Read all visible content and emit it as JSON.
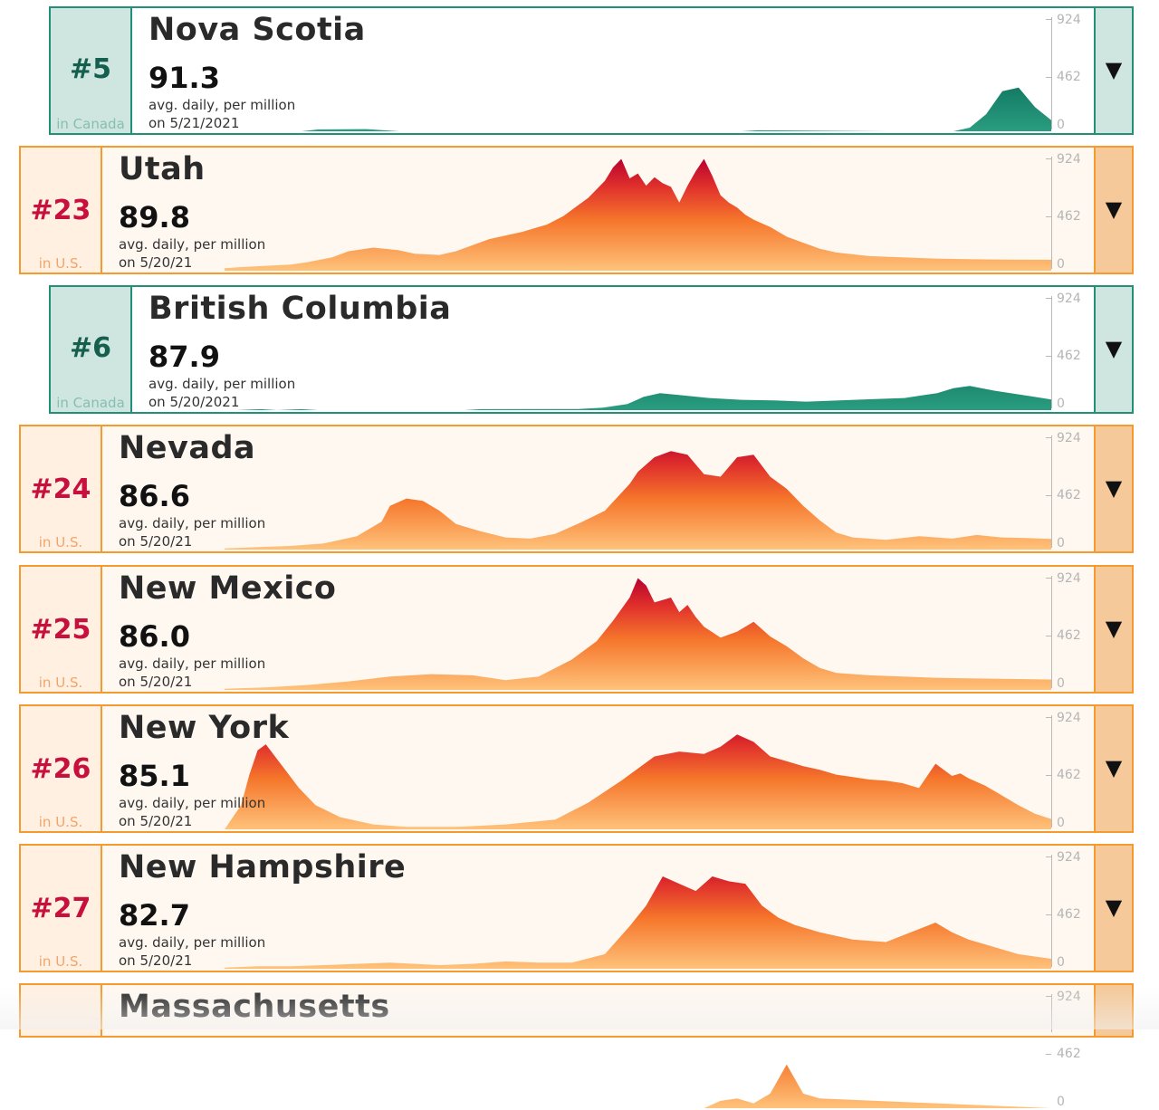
{
  "axis": {
    "max_label": "924",
    "mid_label": "462",
    "min_label": "0",
    "max": 924
  },
  "cards": [
    {
      "rank": "#5",
      "country": "in Canada",
      "name": "Nova Scotia",
      "value": "91.3",
      "unit": "avg. daily, per million",
      "date": "on 5/21/2021",
      "toggle": "▼",
      "kind": "ca"
    },
    {
      "rank": "#23",
      "country": "in U.S.",
      "name": "Utah",
      "value": "89.8",
      "unit": "avg. daily, per million",
      "date": "on 5/20/21",
      "toggle": "▼",
      "kind": "us"
    },
    {
      "rank": "#6",
      "country": "in Canada",
      "name": "British Columbia",
      "value": "87.9",
      "unit": "avg. daily, per million",
      "date": "on 5/20/2021",
      "toggle": "▼",
      "kind": "ca"
    },
    {
      "rank": "#24",
      "country": "in U.S.",
      "name": "Nevada",
      "value": "86.6",
      "unit": "avg. daily, per million",
      "date": "on 5/20/21",
      "toggle": "▼",
      "kind": "us"
    },
    {
      "rank": "#25",
      "country": "in U.S.",
      "name": "New Mexico",
      "value": "86.0",
      "unit": "avg. daily, per million",
      "date": "on 5/20/21",
      "toggle": "▼",
      "kind": "us"
    },
    {
      "rank": "#26",
      "country": "in U.S.",
      "name": "New York",
      "value": "85.1",
      "unit": "avg. daily, per million",
      "date": "on 5/20/21",
      "toggle": "▼",
      "kind": "us"
    },
    {
      "rank": "#27",
      "country": "in U.S.",
      "name": "New Hampshire",
      "value": "82.7",
      "unit": "avg. daily, per million",
      "date": "on 5/20/21",
      "toggle": "▼",
      "kind": "us"
    },
    {
      "rank": "",
      "country": "",
      "name": "Massachusetts",
      "value": "",
      "unit": "",
      "date": "",
      "toggle": "",
      "kind": "us"
    }
  ],
  "chart_data": {
    "type": "area",
    "ylim": [
      0,
      924
    ],
    "yticks": [
      0,
      462,
      924
    ],
    "series": [
      {
        "name": "Nova Scotia",
        "x": [
          0,
          0.08,
          0.1,
          0.16,
          0.2,
          0.62,
          0.64,
          0.8,
          0.88,
          0.9,
          0.92,
          0.94,
          0.96,
          0.98,
          1.0
        ],
        "values": [
          0,
          0,
          15,
          18,
          0,
          0,
          8,
          0,
          0,
          30,
          140,
          330,
          360,
          200,
          91
        ]
      },
      {
        "name": "Utah",
        "x": [
          0,
          0.02,
          0.05,
          0.08,
          0.1,
          0.13,
          0.15,
          0.18,
          0.21,
          0.23,
          0.26,
          0.28,
          0.32,
          0.36,
          0.39,
          0.41,
          0.44,
          0.46,
          0.47,
          0.48,
          0.49,
          0.5,
          0.51,
          0.52,
          0.53,
          0.54,
          0.55,
          0.56,
          0.57,
          0.58,
          0.59,
          0.6,
          0.61,
          0.62,
          0.63,
          0.64,
          0.66,
          0.68,
          0.7,
          0.72,
          0.74,
          0.78,
          0.82,
          0.86,
          0.9,
          0.95,
          1.0
        ],
        "values": [
          20,
          30,
          40,
          50,
          70,
          110,
          160,
          190,
          170,
          140,
          130,
          160,
          260,
          320,
          380,
          450,
          600,
          740,
          850,
          920,
          760,
          800,
          700,
          770,
          720,
          690,
          560,
          700,
          820,
          920,
          780,
          620,
          560,
          520,
          460,
          420,
          360,
          280,
          230,
          180,
          150,
          120,
          110,
          100,
          95,
          92,
          90
        ]
      },
      {
        "name": "British Columbia",
        "x": [
          0,
          0.03,
          0.05,
          0.08,
          0.1,
          0.28,
          0.3,
          0.42,
          0.45,
          0.48,
          0.5,
          0.52,
          0.55,
          0.58,
          0.62,
          0.66,
          0.7,
          0.74,
          0.78,
          0.82,
          0.86,
          0.88,
          0.9,
          0.93,
          0.96,
          1.0
        ],
        "values": [
          0,
          8,
          0,
          8,
          0,
          0,
          8,
          10,
          20,
          50,
          110,
          140,
          120,
          100,
          85,
          80,
          70,
          80,
          90,
          100,
          140,
          180,
          200,
          160,
          130,
          88
        ]
      },
      {
        "name": "Nevada",
        "x": [
          0,
          0.04,
          0.08,
          0.12,
          0.16,
          0.19,
          0.2,
          0.22,
          0.24,
          0.26,
          0.28,
          0.31,
          0.34,
          0.37,
          0.4,
          0.43,
          0.46,
          0.49,
          0.5,
          0.52,
          0.54,
          0.56,
          0.58,
          0.6,
          0.62,
          0.64,
          0.66,
          0.68,
          0.7,
          0.72,
          0.74,
          0.76,
          0.8,
          0.84,
          0.88,
          0.91,
          0.94,
          0.97,
          1.0
        ],
        "values": [
          10,
          20,
          30,
          50,
          110,
          230,
          360,
          420,
          400,
          320,
          210,
          150,
          100,
          90,
          130,
          220,
          320,
          540,
          640,
          760,
          810,
          780,
          620,
          600,
          760,
          780,
          600,
          500,
          360,
          240,
          140,
          100,
          80,
          110,
          90,
          120,
          100,
          95,
          87
        ]
      },
      {
        "name": "New Mexico",
        "x": [
          0,
          0.05,
          0.1,
          0.15,
          0.2,
          0.25,
          0.3,
          0.34,
          0.38,
          0.42,
          0.45,
          0.47,
          0.49,
          0.5,
          0.51,
          0.52,
          0.54,
          0.55,
          0.56,
          0.57,
          0.58,
          0.6,
          0.62,
          0.64,
          0.66,
          0.68,
          0.7,
          0.72,
          0.74,
          0.78,
          0.82,
          0.86,
          0.9,
          0.95,
          1.0
        ],
        "values": [
          10,
          20,
          40,
          70,
          110,
          130,
          120,
          80,
          110,
          250,
          400,
          570,
          760,
          920,
          860,
          720,
          760,
          640,
          700,
          600,
          520,
          430,
          480,
          560,
          440,
          360,
          260,
          180,
          140,
          120,
          110,
          100,
          95,
          90,
          86
        ]
      },
      {
        "name": "New York",
        "x": [
          0,
          0.02,
          0.03,
          0.04,
          0.05,
          0.07,
          0.09,
          0.11,
          0.14,
          0.18,
          0.22,
          0.28,
          0.34,
          0.4,
          0.44,
          0.48,
          0.52,
          0.55,
          0.58,
          0.6,
          0.62,
          0.64,
          0.66,
          0.68,
          0.7,
          0.72,
          0.74,
          0.76,
          0.78,
          0.8,
          0.82,
          0.84,
          0.86,
          0.88,
          0.89,
          0.9,
          0.92,
          0.94,
          0.96,
          0.98,
          1.0
        ],
        "values": [
          0,
          200,
          450,
          650,
          700,
          520,
          340,
          200,
          100,
          40,
          20,
          20,
          40,
          80,
          220,
          400,
          600,
          640,
          620,
          680,
          780,
          720,
          600,
          560,
          520,
          490,
          450,
          430,
          410,
          400,
          380,
          340,
          540,
          440,
          460,
          420,
          360,
          280,
          200,
          130,
          85
        ]
      },
      {
        "name": "New Hampshire",
        "x": [
          0,
          0.04,
          0.08,
          0.12,
          0.16,
          0.2,
          0.26,
          0.3,
          0.34,
          0.38,
          0.42,
          0.46,
          0.49,
          0.51,
          0.53,
          0.55,
          0.57,
          0.59,
          0.61,
          0.63,
          0.65,
          0.67,
          0.69,
          0.72,
          0.76,
          0.8,
          0.83,
          0.86,
          0.88,
          0.9,
          0.93,
          0.96,
          1.0
        ],
        "values": [
          10,
          20,
          20,
          30,
          40,
          50,
          30,
          40,
          60,
          50,
          50,
          120,
          350,
          520,
          760,
          700,
          640,
          760,
          720,
          700,
          520,
          420,
          360,
          300,
          240,
          220,
          300,
          380,
          300,
          240,
          180,
          120,
          82
        ]
      },
      {
        "name": "Massachusetts",
        "x": [
          0,
          0.58,
          0.6,
          0.62,
          0.64,
          0.66,
          0.68,
          0.7,
          0.72
        ],
        "values": [
          0,
          0,
          60,
          80,
          40,
          120,
          360,
          120,
          80
        ]
      }
    ]
  }
}
